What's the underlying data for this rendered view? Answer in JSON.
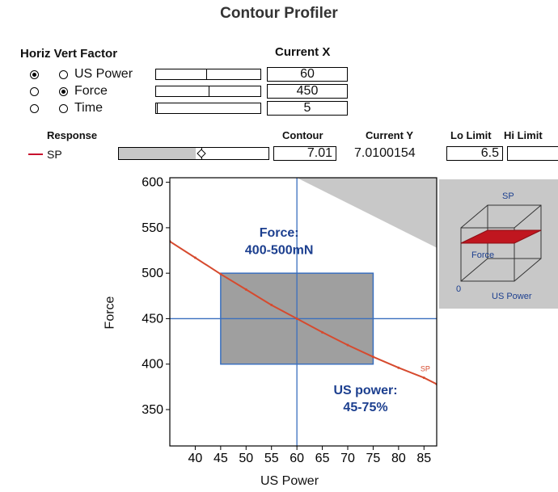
{
  "title": "Contour Profiler",
  "factors": {
    "header_horiz_vert_factor": "Horiz Vert Factor",
    "header_current_x": "Current X",
    "rows": [
      {
        "name": "US Power",
        "horiz": true,
        "vert": false,
        "current": "60",
        "slider_fraction": 0.46
      },
      {
        "name": "Force",
        "horiz": false,
        "vert": true,
        "current": "450",
        "slider_fraction": 0.5
      },
      {
        "name": "Time",
        "horiz": false,
        "vert": false,
        "current": "5",
        "slider_fraction": 0.0
      }
    ]
  },
  "responses": {
    "header_response": "Response",
    "header_contour": "Contour",
    "header_current_y": "Current Y",
    "header_lo_limit": "Lo Limit",
    "header_hi_limit": "Hi Limit",
    "rows": [
      {
        "name": "SP",
        "color": "#c8102e",
        "contour": "7.01",
        "current_y": "7.0100154",
        "lo_limit": "6.5",
        "hi_limit": "",
        "slider_fraction": 0.51
      }
    ]
  },
  "chart_data": {
    "type": "line",
    "xlabel": "US Power",
    "ylabel": "Force",
    "xlim": [
      35,
      87.5
    ],
    "ylim": [
      310,
      605
    ],
    "x_ticks": [
      40,
      45,
      50,
      55,
      60,
      65,
      70,
      75,
      80,
      85
    ],
    "y_ticks": [
      350,
      400,
      450,
      500,
      550,
      600
    ],
    "crosshair": {
      "x": 60,
      "y": 450
    },
    "region": {
      "x": [
        45,
        75
      ],
      "y": [
        400,
        500
      ]
    },
    "shaded_corner": [
      [
        60,
        605
      ],
      [
        87.5,
        605
      ],
      [
        87.5,
        528
      ]
    ],
    "series": [
      {
        "name": "SP",
        "color": "#d64a2e",
        "x": [
          35,
          40,
          45,
          50,
          55,
          60,
          65,
          70,
          75,
          80,
          85,
          87.5
        ],
        "y": [
          535,
          517,
          499,
          482,
          465,
          450,
          435,
          421,
          408,
          396,
          385,
          378
        ]
      }
    ],
    "annotations": [
      {
        "text": "Force:",
        "x": 56.5,
        "y": 540
      },
      {
        "text": "400-500mN",
        "x": 56.5,
        "y": 521
      },
      {
        "text": "US power:",
        "x": 73.5,
        "y": 367
      },
      {
        "text": "45-75%",
        "x": 73.5,
        "y": 348
      }
    ],
    "series_label": "SP"
  },
  "cube": {
    "label_response": "SP",
    "label_factor_y": "Force",
    "label_factor_x": "US Power",
    "label_origin": "0"
  },
  "colors": {
    "accent_blue": "#3a6fbe",
    "region_fill": "#8a8a8a",
    "annotation_blue": "#1c3f8f",
    "contour_red": "#d64a2e"
  }
}
